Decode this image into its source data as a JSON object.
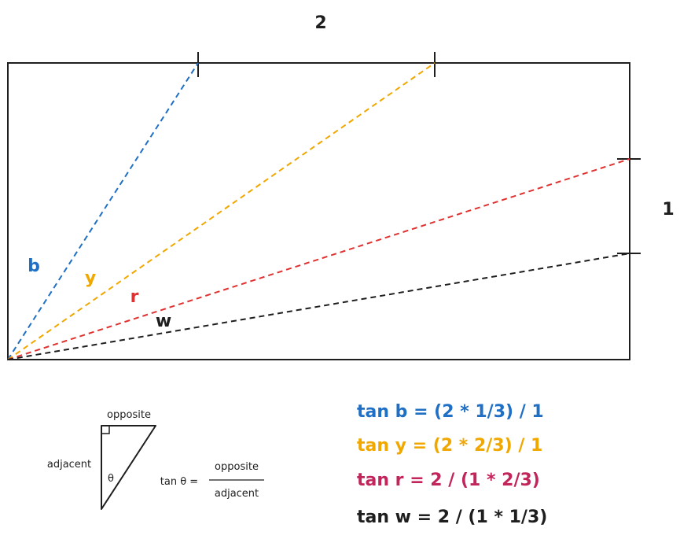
{
  "colors": {
    "blue": "#1f6fc5",
    "yellow": "#f0a800",
    "red": "#e03131",
    "crimson": "#c2255c",
    "black": "#1e1e1e"
  },
  "dimensions": {
    "width_label": "2",
    "height_label": "1"
  },
  "lines": {
    "b": "b",
    "y": "y",
    "r": "r",
    "w": "w"
  },
  "triangle": {
    "opposite": "opposite",
    "adjacent": "adjacent",
    "angle": "θ",
    "formula_left": "tan θ =",
    "formula_num": "opposite",
    "formula_den": "adjacent"
  },
  "equations": [
    {
      "text": "tan b = (2 * 1/3) / 1",
      "color": "#1f6fc5"
    },
    {
      "text": "tan y = (2 * 2/3) / 1",
      "color": "#f0a800"
    },
    {
      "text": "tan r = 2 / (1 * 2/3)",
      "color": "#c2255c"
    },
    {
      "text": "tan w = 2 / (1 * 1/3)",
      "color": "#1e1e1e"
    }
  ]
}
